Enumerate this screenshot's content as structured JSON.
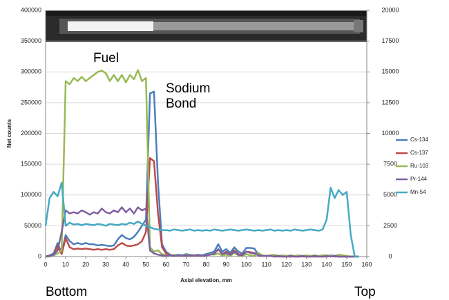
{
  "chart_data": {
    "type": "line",
    "xlabel": "Axial elevation, mm",
    "ylabel": "Net counts",
    "annotations": [
      "Fuel",
      "Sodium Bond",
      "Bottom",
      "Top"
    ],
    "x": [
      0,
      2,
      4,
      6,
      8,
      10,
      12,
      14,
      16,
      18,
      20,
      22,
      24,
      26,
      28,
      30,
      32,
      34,
      36,
      38,
      40,
      42,
      44,
      46,
      48,
      50,
      52,
      54,
      56,
      58,
      60,
      62,
      64,
      66,
      68,
      70,
      72,
      74,
      76,
      78,
      80,
      82,
      84,
      86,
      88,
      90,
      92,
      94,
      96,
      98,
      100,
      102,
      104,
      106,
      108,
      110,
      112,
      114,
      116,
      118,
      120,
      122,
      124,
      126,
      128,
      130,
      132,
      134,
      136,
      138,
      140,
      142,
      144,
      146,
      148,
      150,
      152,
      154,
      156
    ],
    "xlim": [
      0,
      160
    ],
    "xticks": [
      0,
      10,
      20,
      30,
      40,
      50,
      60,
      70,
      80,
      90,
      100,
      110,
      120,
      130,
      140,
      150,
      160
    ],
    "ylim": [
      0,
      400000
    ],
    "yticks": [
      0,
      50000,
      100000,
      150000,
      200000,
      250000,
      300000,
      350000,
      400000
    ],
    "y2lim": [
      0,
      20000
    ],
    "y2ticks": [
      0,
      2500,
      5000,
      7500,
      10000,
      12500,
      15000,
      17500,
      20000
    ],
    "grid": true,
    "legend": "right",
    "series": [
      {
        "name": "Cs-134",
        "color": "#4a7ebb",
        "values": [
          0,
          2000,
          5000,
          22000,
          5000,
          35000,
          25000,
          20000,
          22000,
          20000,
          22000,
          20000,
          20000,
          18000,
          19000,
          18000,
          17000,
          18000,
          28000,
          35000,
          30000,
          28000,
          32000,
          40000,
          50000,
          60000,
          265000,
          268000,
          120000,
          20000,
          8000,
          3000,
          2000,
          3000,
          2000,
          4000,
          3000,
          2000,
          3000,
          2000,
          4000,
          6000,
          8000,
          20000,
          8000,
          12000,
          6000,
          15000,
          8000,
          5000,
          14000,
          14000,
          13000,
          3000,
          2000,
          1000,
          2000,
          1000,
          1000,
          1000,
          1000,
          0,
          1000,
          0,
          1000,
          0,
          1000,
          0,
          1000,
          0,
          1000,
          2000,
          1000,
          0,
          0,
          0,
          0,
          0,
          0
        ]
      },
      {
        "name": "Cs-137",
        "color": "#be4b48",
        "values": [
          0,
          1000,
          3000,
          18000,
          4000,
          30000,
          15000,
          12000,
          13000,
          12000,
          13000,
          12000,
          11000,
          12000,
          11000,
          12000,
          11000,
          12000,
          18000,
          22000,
          18000,
          17000,
          18000,
          20000,
          25000,
          40000,
          160000,
          155000,
          70000,
          15000,
          5000,
          2000,
          1000,
          2000,
          1000,
          2000,
          1000,
          2000,
          1000,
          1000,
          2000,
          3000,
          4000,
          12000,
          4000,
          8000,
          3000,
          10000,
          4000,
          3000,
          8000,
          7000,
          6000,
          2000,
          1000,
          1000,
          1000,
          0,
          0,
          0,
          0,
          0,
          0,
          0,
          0,
          0,
          0,
          0,
          0,
          0,
          0,
          1000,
          0,
          0,
          0,
          0,
          0,
          0,
          0
        ]
      },
      {
        "name": "Ru-103",
        "color": "#98b954",
        "values": [
          0,
          0,
          2000,
          5000,
          10000,
          285000,
          280000,
          290000,
          285000,
          292000,
          285000,
          290000,
          295000,
          300000,
          302000,
          298000,
          285000,
          295000,
          285000,
          295000,
          283000,
          295000,
          288000,
          303000,
          285000,
          290000,
          15000,
          8000,
          10000,
          4000,
          2000,
          1000,
          3000,
          2000,
          1000,
          2000,
          3000,
          1000,
          2000,
          1000,
          2000,
          4000,
          3000,
          5000,
          2000,
          3000,
          1000,
          6000,
          2000,
          1000,
          4000,
          2000,
          1000,
          6000,
          2000,
          1000,
          2000,
          3000,
          1000,
          2000,
          1000,
          2000,
          1000,
          2000,
          1000,
          2000,
          1000,
          2000,
          1000,
          2000,
          2000,
          1000,
          1000,
          3000,
          2000,
          1000,
          0,
          0,
          0
        ]
      },
      {
        "name": "Pr-144",
        "color": "#7d60a0",
        "values": [
          0,
          1000,
          3000,
          10000,
          40000,
          75000,
          70000,
          72000,
          70000,
          75000,
          72000,
          68000,
          72000,
          70000,
          78000,
          72000,
          70000,
          75000,
          72000,
          80000,
          72000,
          78000,
          70000,
          80000,
          75000,
          78000,
          10000,
          5000,
          3000,
          2000,
          1000,
          2000,
          1000,
          2000,
          1000,
          1000,
          2000,
          1000,
          2000,
          1000,
          2000,
          3000,
          5000,
          12000,
          4000,
          6000,
          3000,
          8000,
          3000,
          2000,
          8000,
          6000,
          5000,
          2000,
          1000,
          1000,
          1000,
          0,
          1000,
          0,
          0,
          1000,
          0,
          0,
          1000,
          0,
          0,
          1000,
          0,
          0,
          1000,
          0,
          1000,
          0,
          0,
          0,
          0,
          0,
          0
        ]
      },
      {
        "name": "Mn-54",
        "color": "#46aac5",
        "values": [
          50000,
          95000,
          105000,
          98000,
          120000,
          50000,
          55000,
          52000,
          53000,
          51000,
          53000,
          52000,
          51000,
          53000,
          52000,
          50000,
          53000,
          52000,
          51000,
          53000,
          52000,
          55000,
          53000,
          57000,
          53000,
          50000,
          48000,
          45000,
          44000,
          43000,
          43000,
          42000,
          44000,
          43000,
          42000,
          43000,
          44000,
          42000,
          43000,
          42000,
          43000,
          42000,
          44000,
          43000,
          42000,
          43000,
          44000,
          43000,
          42000,
          43000,
          44000,
          43000,
          42000,
          43000,
          42000,
          43000,
          44000,
          42000,
          43000,
          42000,
          43000,
          42000,
          44000,
          43000,
          42000,
          43000,
          44000,
          43000,
          42000,
          44000,
          60000,
          112000,
          95000,
          108000,
          100000,
          105000,
          35000,
          0,
          0
        ]
      }
    ]
  }
}
